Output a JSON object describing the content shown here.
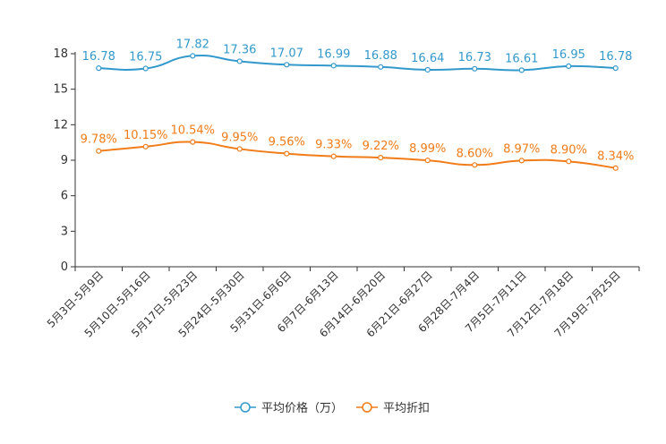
{
  "chart_data": {
    "type": "line",
    "categories": [
      "5月3日-5月9日",
      "5月10日-5月16日",
      "5月17日-5月23日",
      "5月24日-5月30日",
      "5月31日-6月6日",
      "6月7日-6月13日",
      "6月14日-6月20日",
      "6月21日-6月27日",
      "6月28日-7月4日",
      "7月5日-7月11日",
      "7月12日-7月18日",
      "7月19日-7月25日"
    ],
    "ylim": [
      0,
      18
    ],
    "yticks": [
      0,
      3,
      6,
      9,
      12,
      15,
      18
    ],
    "series": [
      {
        "name": "平均价格（万）",
        "color": "#3399cc",
        "values": [
          16.78,
          16.75,
          17.82,
          17.36,
          17.07,
          16.99,
          16.88,
          16.64,
          16.73,
          16.61,
          16.95,
          16.78
        ],
        "labels": [
          "16.78",
          "16.75",
          "17.82",
          "17.36",
          "17.07",
          "16.99",
          "16.88",
          "16.64",
          "16.73",
          "16.61",
          "16.95",
          "16.78"
        ]
      },
      {
        "name": "平均折扣",
        "color": "#f07c1a",
        "values": [
          9.78,
          10.15,
          10.54,
          9.95,
          9.56,
          9.33,
          9.22,
          8.99,
          8.6,
          8.97,
          8.9,
          8.34
        ],
        "labels": [
          "9.78%",
          "10.15%",
          "10.54%",
          "9.95%",
          "9.56%",
          "9.33%",
          "9.22%",
          "8.99%",
          "8.60%",
          "8.97%",
          "8.90%",
          "8.34%"
        ]
      }
    ],
    "legend": "bottom-center",
    "grid": false
  }
}
